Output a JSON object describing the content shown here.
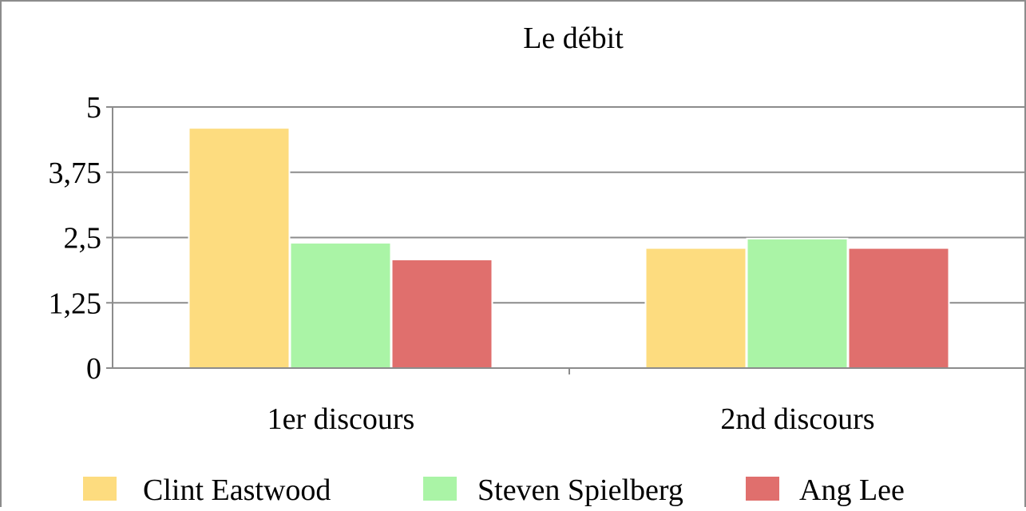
{
  "chart_data": {
    "type": "bar",
    "title": "Le débit",
    "categories": [
      "1er discours",
      "2nd discours"
    ],
    "series": [
      {
        "name": "Clint Eastwood",
        "values": [
          4.6,
          2.3
        ],
        "color": "#FDDC7F"
      },
      {
        "name": "Steven Spielberg",
        "values": [
          2.4,
          2.48
        ],
        "color": "#AAF4A6"
      },
      {
        "name": "Ang Lee",
        "values": [
          2.08,
          2.3
        ],
        "color": "#E06F6D"
      }
    ],
    "ylim": [
      0,
      5
    ],
    "yticks": [
      0,
      1.25,
      2.5,
      3.75,
      5
    ],
    "ytick_labels": [
      "0",
      "1,25",
      "2,5",
      "3,75",
      "5"
    ],
    "grid": true,
    "legend_position": "bottom",
    "xlabel": "",
    "ylabel": ""
  }
}
